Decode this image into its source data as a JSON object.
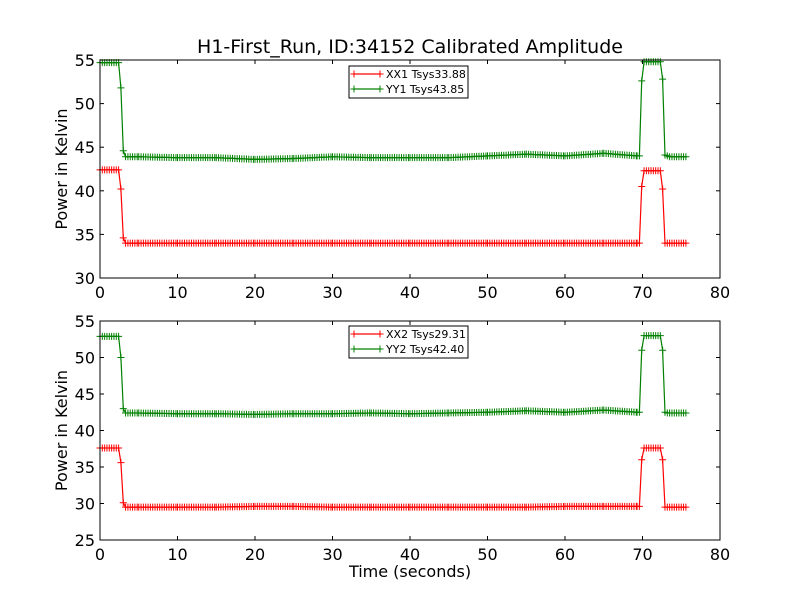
{
  "chart_data": [
    {
      "type": "line",
      "title": "H1-First_Run, ID:34152 Calibrated Amplitude",
      "xlabel": "",
      "ylabel": "Power in Kelvin",
      "xlim": [
        0,
        80
      ],
      "ylim": [
        30,
        55
      ],
      "xticks": [
        "0",
        "10",
        "20",
        "30",
        "40",
        "50",
        "60",
        "70",
        "80"
      ],
      "yticks": [
        "30",
        "35",
        "40",
        "45",
        "50",
        "55"
      ],
      "grid": false,
      "legend_position": "top-center",
      "series": [
        {
          "name": "XX1 Tsys33.88",
          "color": "#ff0000",
          "x": [
            0.0,
            0.3,
            0.6,
            0.9,
            1.2,
            1.5,
            1.8,
            2.1,
            2.4,
            2.7,
            3.0,
            3.3,
            3.6,
            3.9,
            5,
            10,
            15,
            20,
            25,
            30,
            35,
            40,
            45,
            50,
            55,
            60,
            65,
            69.3,
            69.6,
            69.9,
            70.2,
            70.5,
            70.8,
            71.1,
            71.4,
            71.7,
            72.0,
            72.3,
            72.6,
            72.9,
            73.2,
            73.5,
            75.6
          ],
          "y": [
            42.4,
            42.4,
            42.4,
            42.4,
            42.4,
            42.4,
            42.4,
            42.4,
            42.4,
            40.2,
            34.6,
            34.0,
            34.0,
            34.0,
            34.0,
            34.0,
            34.0,
            34.0,
            34.0,
            34.0,
            34.0,
            34.0,
            34.0,
            34.0,
            34.0,
            34.0,
            34.0,
            34.0,
            34.0,
            40.5,
            42.3,
            42.3,
            42.3,
            42.3,
            42.3,
            42.3,
            42.3,
            42.3,
            40.2,
            34.0,
            34.0,
            34.0,
            34.0
          ]
        },
        {
          "name": "YY1 Tsys43.85",
          "color": "#008000",
          "x": [
            0.0,
            0.3,
            0.6,
            0.9,
            1.2,
            1.5,
            1.8,
            2.1,
            2.4,
            2.7,
            3.0,
            3.3,
            3.6,
            3.9,
            5,
            10,
            15,
            20,
            25,
            30,
            35,
            40,
            45,
            50,
            55,
            60,
            65,
            69.3,
            69.6,
            69.9,
            70.2,
            70.5,
            70.8,
            71.1,
            71.4,
            71.7,
            72.0,
            72.3,
            72.6,
            72.9,
            73.2,
            73.5,
            75.6
          ],
          "y": [
            54.7,
            54.7,
            54.7,
            54.7,
            54.7,
            54.7,
            54.7,
            54.7,
            54.7,
            51.8,
            44.6,
            43.9,
            43.9,
            43.9,
            43.9,
            43.8,
            43.8,
            43.6,
            43.7,
            43.9,
            43.8,
            43.8,
            43.8,
            44.0,
            44.2,
            44.0,
            44.3,
            44.0,
            44.0,
            52.6,
            54.8,
            54.8,
            54.8,
            54.8,
            54.8,
            54.8,
            54.8,
            54.8,
            52.8,
            44.1,
            44.0,
            43.9,
            43.9
          ]
        }
      ]
    },
    {
      "type": "line",
      "title": "",
      "xlabel": "Time (seconds)",
      "ylabel": "Power in Kelvin",
      "xlim": [
        0,
        80
      ],
      "ylim": [
        25,
        55
      ],
      "xticks": [
        "0",
        "10",
        "20",
        "30",
        "40",
        "50",
        "60",
        "70",
        "80"
      ],
      "yticks": [
        "25",
        "30",
        "35",
        "40",
        "45",
        "50",
        "55"
      ],
      "grid": false,
      "legend_position": "top-center",
      "series": [
        {
          "name": "XX2 Tsys29.31",
          "color": "#ff0000",
          "x": [
            0.0,
            0.3,
            0.6,
            0.9,
            1.2,
            1.5,
            1.8,
            2.1,
            2.4,
            2.7,
            3.0,
            3.3,
            3.6,
            3.9,
            5,
            10,
            15,
            20,
            25,
            30,
            35,
            40,
            45,
            50,
            55,
            60,
            65,
            69.3,
            69.6,
            69.9,
            70.2,
            70.5,
            70.8,
            71.1,
            71.4,
            71.7,
            72.0,
            72.3,
            72.6,
            72.9,
            73.2,
            73.5,
            75.6
          ],
          "y": [
            37.6,
            37.6,
            37.6,
            37.6,
            37.6,
            37.6,
            37.6,
            37.6,
            37.6,
            35.6,
            30.1,
            29.5,
            29.5,
            29.5,
            29.5,
            29.5,
            29.5,
            29.6,
            29.6,
            29.5,
            29.5,
            29.5,
            29.5,
            29.5,
            29.5,
            29.6,
            29.6,
            29.6,
            29.6,
            36.0,
            37.6,
            37.6,
            37.6,
            37.6,
            37.6,
            37.6,
            37.6,
            37.6,
            36.0,
            29.5,
            29.5,
            29.5,
            29.5
          ]
        },
        {
          "name": "YY2 Tsys42.40",
          "color": "#008000",
          "x": [
            0.0,
            0.3,
            0.6,
            0.9,
            1.2,
            1.5,
            1.8,
            2.1,
            2.4,
            2.7,
            3.0,
            3.3,
            3.6,
            3.9,
            5,
            10,
            15,
            20,
            25,
            30,
            35,
            40,
            45,
            50,
            55,
            60,
            65,
            69.3,
            69.6,
            69.9,
            70.2,
            70.5,
            70.8,
            71.1,
            71.4,
            71.7,
            72.0,
            72.3,
            72.6,
            72.9,
            73.2,
            73.5,
            75.6
          ],
          "y": [
            52.9,
            52.9,
            52.9,
            52.9,
            52.9,
            52.9,
            52.9,
            52.9,
            52.9,
            50.0,
            43.0,
            42.4,
            42.4,
            42.4,
            42.4,
            42.3,
            42.3,
            42.2,
            42.3,
            42.3,
            42.4,
            42.3,
            42.4,
            42.5,
            42.7,
            42.5,
            42.8,
            42.5,
            42.5,
            51.0,
            53.0,
            53.0,
            53.0,
            53.0,
            53.0,
            53.0,
            53.0,
            53.0,
            51.0,
            42.5,
            42.4,
            42.4,
            42.4
          ]
        }
      ]
    }
  ]
}
